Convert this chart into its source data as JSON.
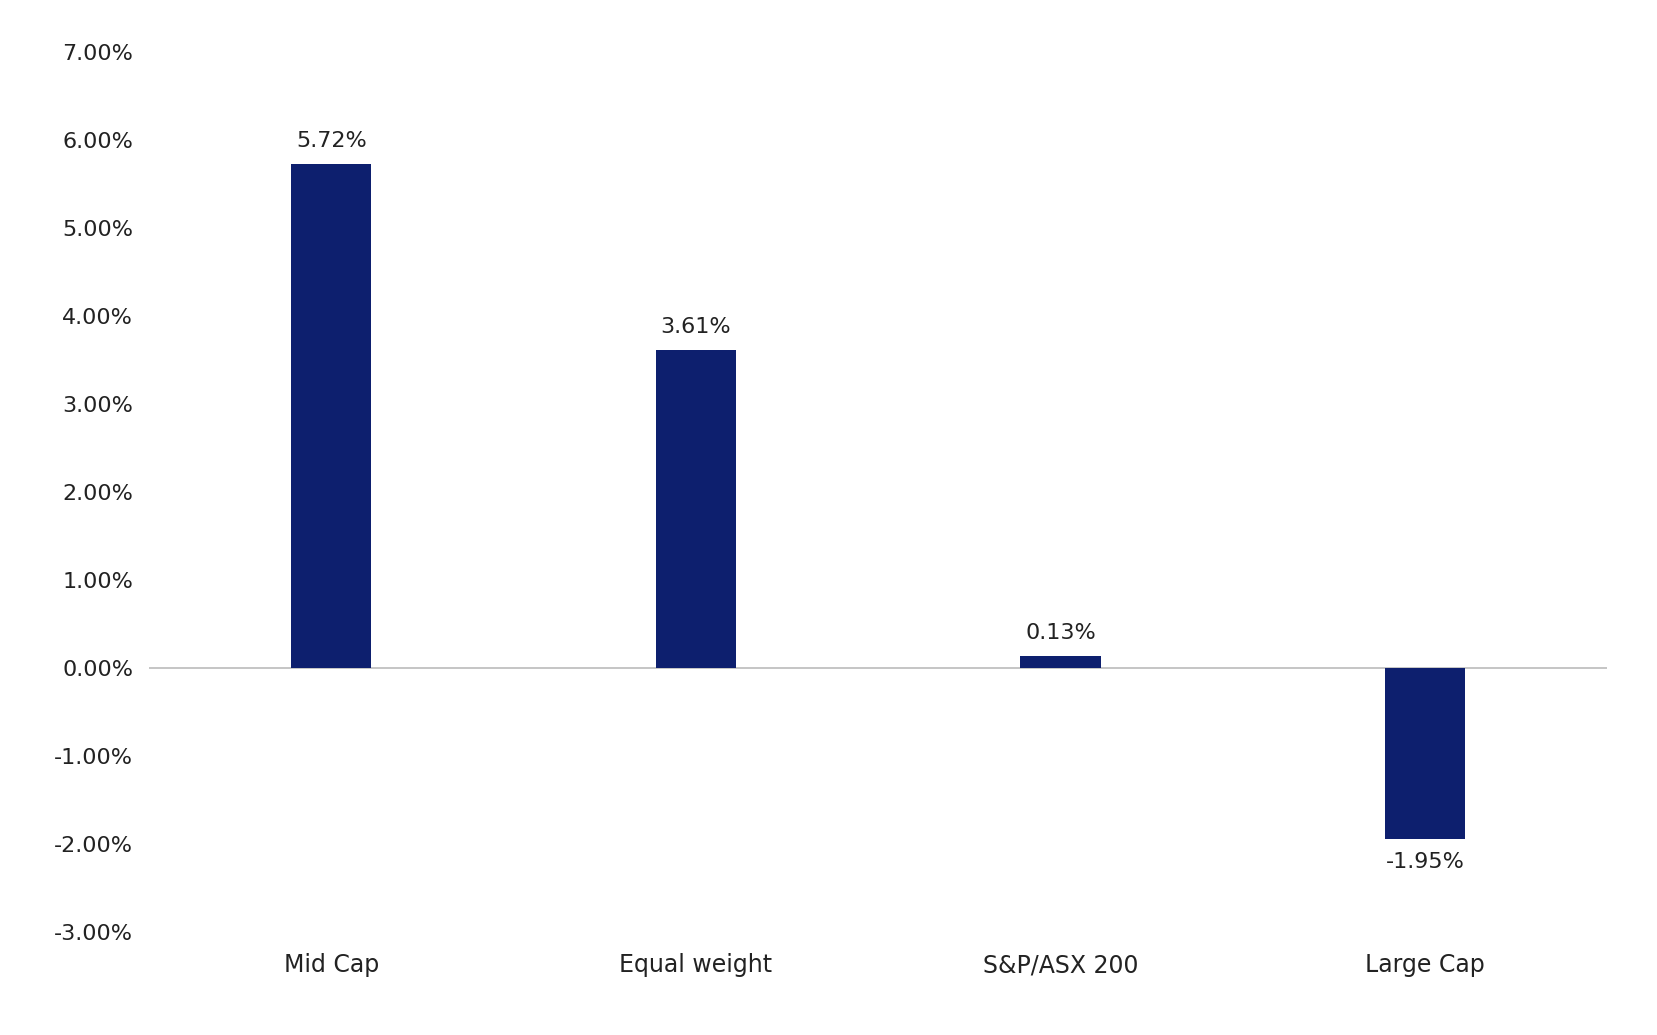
{
  "categories": [
    "Mid Cap",
    "Equal weight",
    "S&P/ASX 200",
    "Large Cap"
  ],
  "values": [
    0.0572,
    0.0361,
    0.0013,
    -0.0195
  ],
  "labels": [
    "5.72%",
    "3.61%",
    "0.13%",
    "-1.95%"
  ],
  "bar_color": "#0d1f6e",
  "background_color": "#ffffff",
  "ylim": [
    -0.03,
    0.07
  ],
  "yticks": [
    -0.03,
    -0.02,
    -0.01,
    0.0,
    0.01,
    0.02,
    0.03,
    0.04,
    0.05,
    0.06,
    0.07
  ],
  "ytick_labels": [
    "-3.00%",
    "-2.00%",
    "-1.00%",
    "0.00%",
    "1.00%",
    "2.00%",
    "3.00%",
    "4.00%",
    "5.00%",
    "6.00%",
    "7.00%"
  ],
  "label_fontsize": 16,
  "tick_fontsize": 16,
  "xticklabel_fontsize": 17,
  "axis_label_color": "#222222",
  "zero_line_color": "#bbbbbb",
  "bar_width": 0.22,
  "xlim": [
    -0.5,
    3.5
  ]
}
